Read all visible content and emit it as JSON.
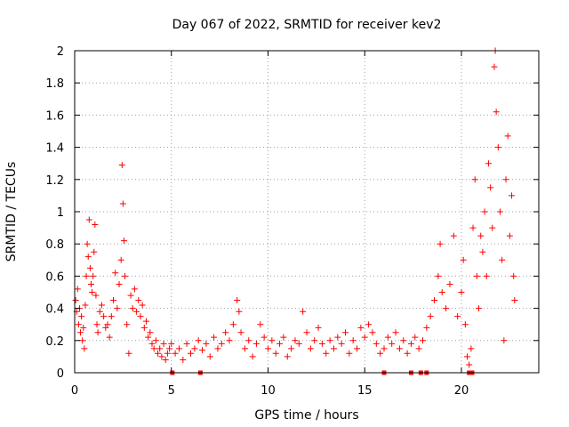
{
  "chart_data": {
    "type": "scatter",
    "title": "Day 067 of 2022, SRMTID for receiver kev2",
    "xlabel": "GPS time / hours",
    "ylabel": "SRMTID / TECUs",
    "xlim": [
      0,
      24
    ],
    "ylim": [
      0,
      2
    ],
    "x_ticks": [
      0,
      5,
      10,
      15,
      20
    ],
    "y_ticks": [
      0,
      0.2,
      0.4,
      0.6,
      0.8,
      1,
      1.2,
      1.4,
      1.6,
      1.8,
      2
    ],
    "x_tick_labels": [
      "0",
      "5",
      "10",
      "15",
      "20"
    ],
    "y_tick_labels": [
      "0",
      "0.2",
      "0.4",
      "0.6",
      "0.8",
      "1",
      "1.2",
      "1.4",
      "1.6",
      "1.8",
      "2"
    ],
    "grid": true,
    "marker": "plus",
    "color": "#ff0000",
    "data_gaps_markers_x": [
      5.05,
      6.5,
      16.0,
      17.4,
      17.9,
      18.2,
      20.4,
      20.55
    ],
    "series": [
      {
        "name": "SRMTID",
        "points": [
          [
            0.05,
            0.45
          ],
          [
            0.1,
            0.38
          ],
          [
            0.15,
            0.52
          ],
          [
            0.2,
            0.3
          ],
          [
            0.25,
            0.4
          ],
          [
            0.3,
            0.25
          ],
          [
            0.35,
            0.35
          ],
          [
            0.4,
            0.2
          ],
          [
            0.45,
            0.28
          ],
          [
            0.5,
            0.15
          ],
          [
            0.55,
            0.42
          ],
          [
            0.6,
            0.6
          ],
          [
            0.65,
            0.8
          ],
          [
            0.7,
            0.72
          ],
          [
            0.75,
            0.95
          ],
          [
            0.8,
            0.65
          ],
          [
            0.85,
            0.55
          ],
          [
            0.9,
            0.5
          ],
          [
            0.95,
            0.6
          ],
          [
            1.0,
            0.75
          ],
          [
            1.05,
            0.92
          ],
          [
            1.1,
            0.48
          ],
          [
            1.15,
            0.3
          ],
          [
            1.2,
            0.25
          ],
          [
            1.3,
            0.38
          ],
          [
            1.4,
            0.42
          ],
          [
            1.5,
            0.35
          ],
          [
            1.6,
            0.28
          ],
          [
            1.7,
            0.3
          ],
          [
            1.8,
            0.22
          ],
          [
            1.9,
            0.35
          ],
          [
            2.0,
            0.45
          ],
          [
            2.1,
            0.62
          ],
          [
            2.2,
            0.4
          ],
          [
            2.3,
            0.55
          ],
          [
            2.4,
            0.7
          ],
          [
            2.45,
            1.29
          ],
          [
            2.5,
            1.05
          ],
          [
            2.55,
            0.82
          ],
          [
            2.6,
            0.6
          ],
          [
            2.7,
            0.3
          ],
          [
            2.8,
            0.12
          ],
          [
            2.9,
            0.48
          ],
          [
            3.0,
            0.4
          ],
          [
            3.1,
            0.52
          ],
          [
            3.2,
            0.38
          ],
          [
            3.3,
            0.45
          ],
          [
            3.4,
            0.35
          ],
          [
            3.5,
            0.42
          ],
          [
            3.6,
            0.28
          ],
          [
            3.7,
            0.32
          ],
          [
            3.8,
            0.22
          ],
          [
            3.9,
            0.25
          ],
          [
            4.0,
            0.18
          ],
          [
            4.1,
            0.15
          ],
          [
            4.2,
            0.2
          ],
          [
            4.3,
            0.12
          ],
          [
            4.4,
            0.15
          ],
          [
            4.5,
            0.1
          ],
          [
            4.6,
            0.18
          ],
          [
            4.7,
            0.08
          ],
          [
            4.8,
            0.12
          ],
          [
            4.9,
            0.15
          ],
          [
            5.0,
            0.18
          ],
          [
            5.2,
            0.12
          ],
          [
            5.4,
            0.15
          ],
          [
            5.6,
            0.08
          ],
          [
            5.8,
            0.18
          ],
          [
            6.0,
            0.12
          ],
          [
            6.2,
            0.15
          ],
          [
            6.4,
            0.2
          ],
          [
            6.6,
            0.14
          ],
          [
            6.8,
            0.18
          ],
          [
            7.0,
            0.1
          ],
          [
            7.2,
            0.22
          ],
          [
            7.4,
            0.15
          ],
          [
            7.6,
            0.18
          ],
          [
            7.8,
            0.25
          ],
          [
            8.0,
            0.2
          ],
          [
            8.2,
            0.3
          ],
          [
            8.4,
            0.45
          ],
          [
            8.5,
            0.38
          ],
          [
            8.6,
            0.25
          ],
          [
            8.8,
            0.15
          ],
          [
            9.0,
            0.2
          ],
          [
            9.2,
            0.1
          ],
          [
            9.4,
            0.18
          ],
          [
            9.6,
            0.3
          ],
          [
            9.8,
            0.22
          ],
          [
            10.0,
            0.15
          ],
          [
            10.2,
            0.2
          ],
          [
            10.4,
            0.12
          ],
          [
            10.6,
            0.18
          ],
          [
            10.8,
            0.22
          ],
          [
            11.0,
            0.1
          ],
          [
            11.2,
            0.15
          ],
          [
            11.4,
            0.2
          ],
          [
            11.6,
            0.18
          ],
          [
            11.8,
            0.38
          ],
          [
            12.0,
            0.25
          ],
          [
            12.2,
            0.15
          ],
          [
            12.4,
            0.2
          ],
          [
            12.6,
            0.28
          ],
          [
            12.8,
            0.18
          ],
          [
            13.0,
            0.12
          ],
          [
            13.2,
            0.2
          ],
          [
            13.4,
            0.15
          ],
          [
            13.6,
            0.22
          ],
          [
            13.8,
            0.18
          ],
          [
            14.0,
            0.25
          ],
          [
            14.2,
            0.12
          ],
          [
            14.4,
            0.2
          ],
          [
            14.6,
            0.15
          ],
          [
            14.8,
            0.28
          ],
          [
            15.0,
            0.22
          ],
          [
            15.2,
            0.3
          ],
          [
            15.4,
            0.25
          ],
          [
            15.6,
            0.18
          ],
          [
            15.8,
            0.12
          ],
          [
            16.0,
            0.15
          ],
          [
            16.2,
            0.22
          ],
          [
            16.4,
            0.18
          ],
          [
            16.6,
            0.25
          ],
          [
            16.8,
            0.15
          ],
          [
            17.0,
            0.2
          ],
          [
            17.2,
            0.12
          ],
          [
            17.4,
            0.18
          ],
          [
            17.6,
            0.22
          ],
          [
            17.8,
            0.15
          ],
          [
            18.0,
            0.2
          ],
          [
            18.2,
            0.28
          ],
          [
            18.4,
            0.35
          ],
          [
            18.6,
            0.45
          ],
          [
            18.8,
            0.6
          ],
          [
            18.9,
            0.8
          ],
          [
            19.0,
            0.5
          ],
          [
            19.2,
            0.4
          ],
          [
            19.4,
            0.55
          ],
          [
            19.6,
            0.85
          ],
          [
            19.8,
            0.35
          ],
          [
            20.0,
            0.5
          ],
          [
            20.1,
            0.7
          ],
          [
            20.2,
            0.3
          ],
          [
            20.3,
            0.1
          ],
          [
            20.4,
            0.05
          ],
          [
            20.5,
            0.15
          ],
          [
            20.6,
            0.9
          ],
          [
            20.7,
            1.2
          ],
          [
            20.8,
            0.6
          ],
          [
            20.9,
            0.4
          ],
          [
            21.0,
            0.85
          ],
          [
            21.1,
            0.75
          ],
          [
            21.2,
            1.0
          ],
          [
            21.3,
            0.6
          ],
          [
            21.4,
            1.3
          ],
          [
            21.5,
            1.15
          ],
          [
            21.6,
            0.9
          ],
          [
            21.7,
            1.9
          ],
          [
            21.75,
            2.0
          ],
          [
            21.8,
            1.62
          ],
          [
            21.9,
            1.4
          ],
          [
            22.0,
            1.0
          ],
          [
            22.1,
            0.7
          ],
          [
            22.2,
            0.2
          ],
          [
            22.3,
            1.2
          ],
          [
            22.4,
            1.47
          ],
          [
            22.5,
            0.85
          ],
          [
            22.6,
            1.1
          ],
          [
            22.7,
            0.6
          ],
          [
            22.75,
            0.45
          ]
        ]
      }
    ]
  }
}
